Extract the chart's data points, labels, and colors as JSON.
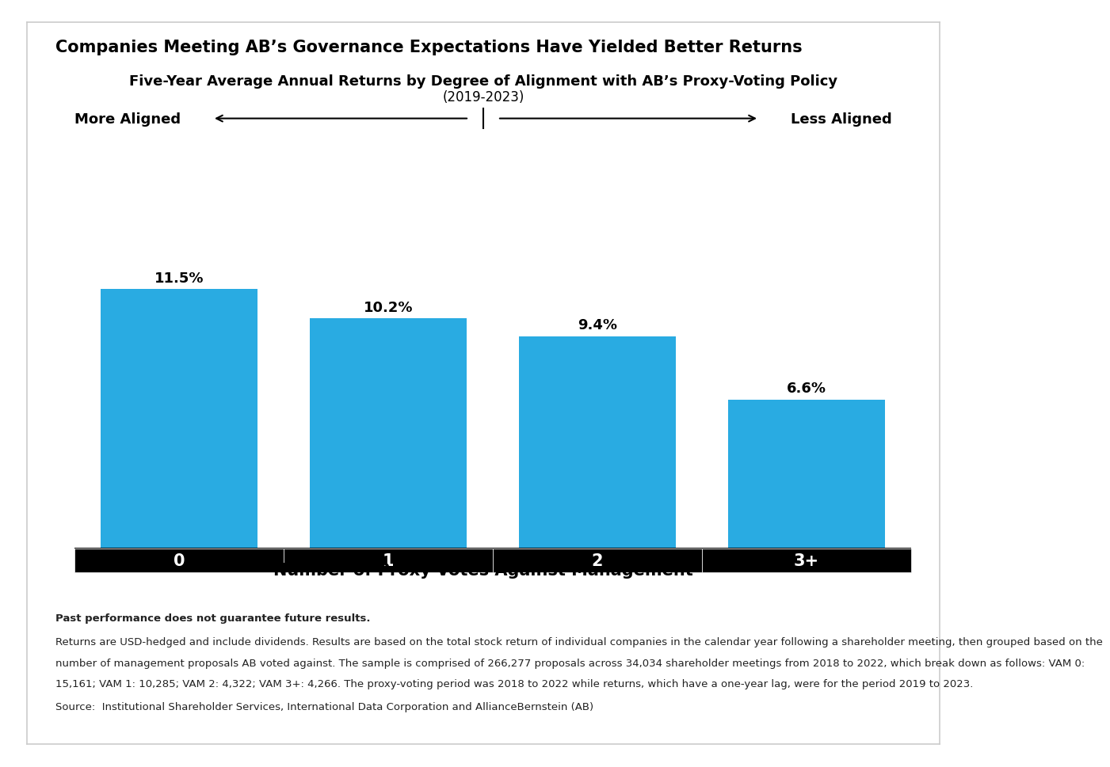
{
  "main_title": "Companies Meeting AB’s Governance Expectations Have Yielded Better Returns",
  "subtitle_line1": "Five-Year Average Annual Returns by Degree of Alignment with AB’s Proxy-Voting Policy",
  "subtitle_line2": "(2019-2023)",
  "categories": [
    "0",
    "1",
    "2",
    "3+"
  ],
  "values": [
    11.5,
    10.2,
    9.4,
    6.6
  ],
  "value_labels": [
    "11.5%",
    "10.2%",
    "9.4%",
    "6.6%"
  ],
  "bar_color": "#29ABE2",
  "tick_bg_color": "#000000",
  "tick_text_color": "#ffffff",
  "xlabel": "Number of Proxy Votes Against Management",
  "more_aligned_label": "More Aligned",
  "less_aligned_label": "Less Aligned",
  "footnote_bold": "Past performance does not guarantee future results.",
  "footnote_line1": "Returns are USD-hedged and include dividends. Results are based on the total stock return of individual companies in the calendar year following a shareholder meeting, then grouped based on the",
  "footnote_line2": "number of management proposals AB voted against. The sample is comprised of 266,277 proposals across 34,034 shareholder meetings from 2018 to 2022, which break down as follows: VAM 0:",
  "footnote_line3": "15,161; VAM 1: 10,285; VAM 2: 4,322; VAM 3+: 4,266. The proxy-voting period was 2018 to 2022 while returns, which have a one-year lag, were for the period 2019 to 2023.",
  "source_text": "Source:  Institutional Shareholder Services, International Data Corporation and AllianceBernstein (AB)",
  "background_color": "#ffffff",
  "border_color": "#cccccc",
  "ylim": [
    0,
    14
  ],
  "value_fontsize": 13,
  "bar_label_fontsize": 15,
  "title_fontsize": 15,
  "subtitle_fontsize": 13,
  "xlabel_fontsize": 15,
  "footnote_fontsize": 9.5,
  "aligned_fontsize": 13
}
